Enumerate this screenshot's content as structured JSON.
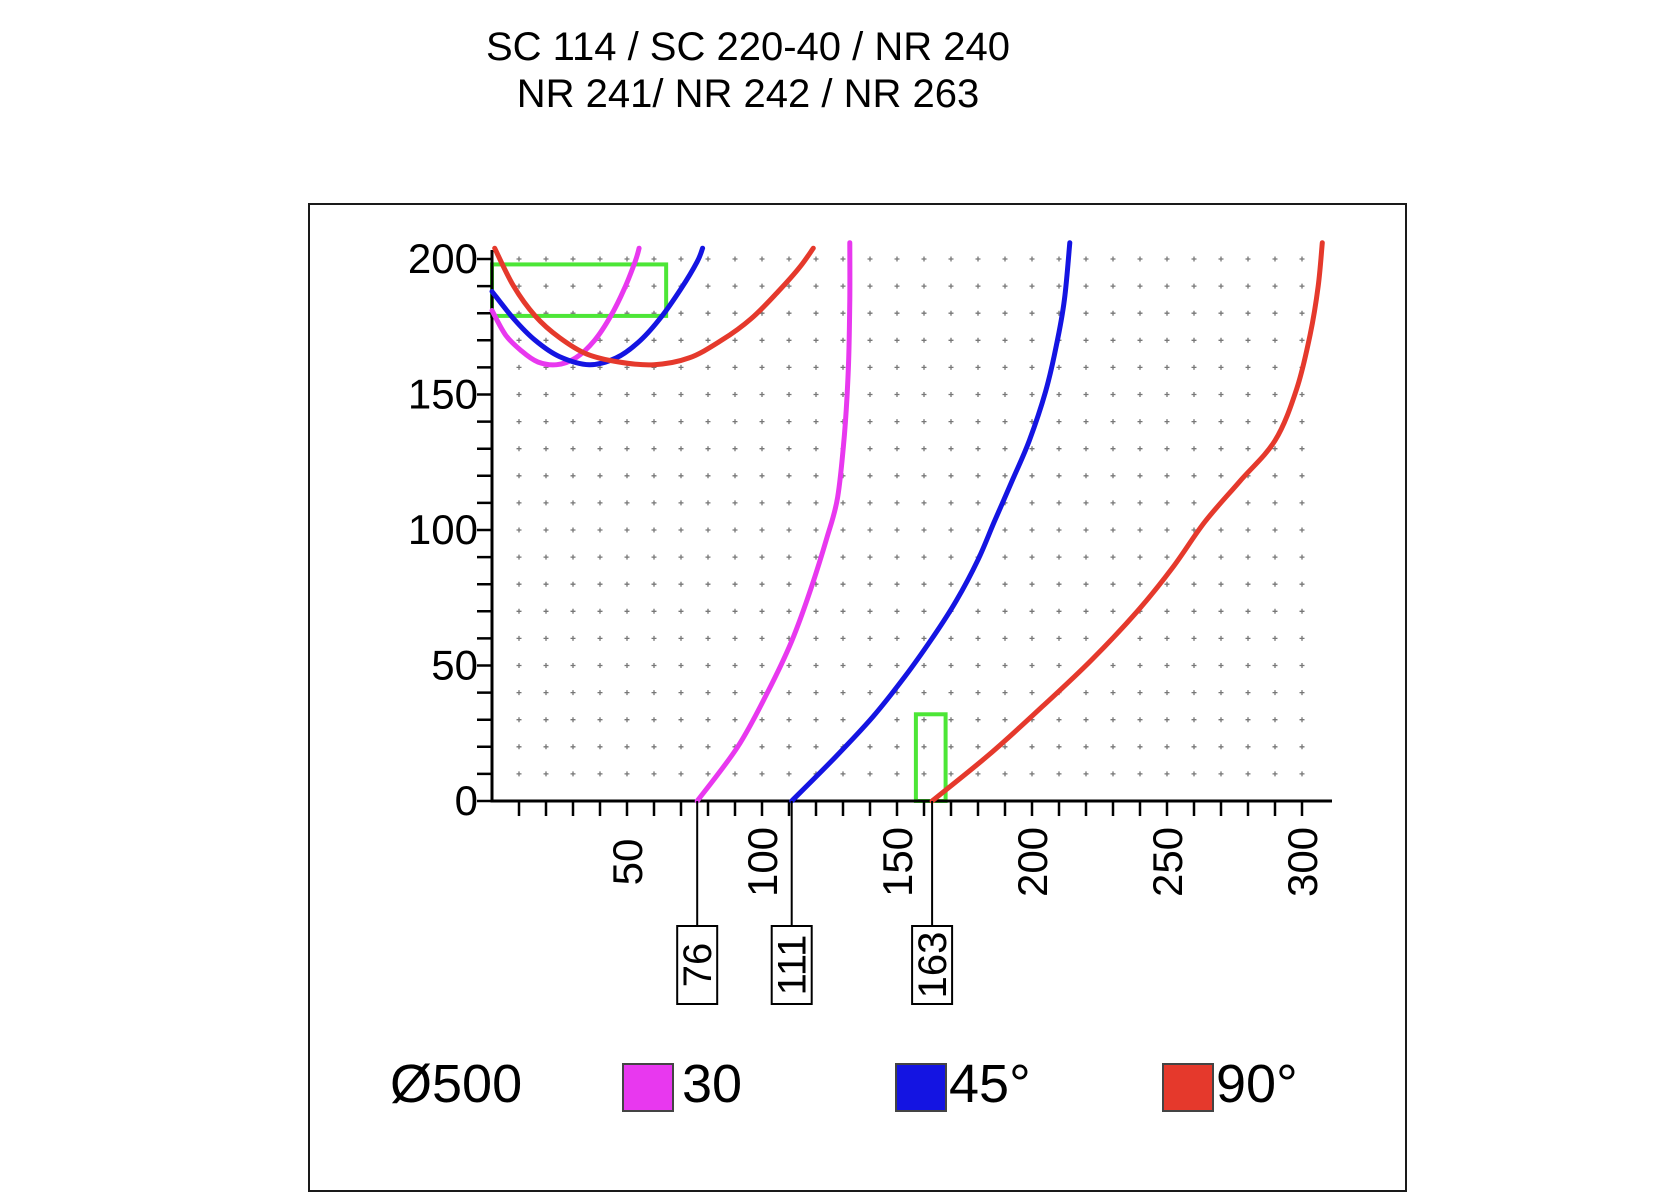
{
  "title": {
    "line1": "SC 114 / SC 220-40 / NR 240",
    "line2": "NR 241/ NR 242 / NR 263"
  },
  "legend": {
    "diameter_label": "Ø500",
    "items": [
      {
        "label": "30",
        "color": "#e838ef"
      },
      {
        "label": "45°",
        "color": "#1414e2"
      },
      {
        "label": "90°",
        "color": "#e5392c"
      }
    ]
  },
  "chart_data": {
    "type": "line",
    "title": "SC 114 / SC 220-40 / NR 240  NR 241/ NR 242 / NR 263",
    "xlabel": "",
    "ylabel": "",
    "xlim": [
      0,
      310
    ],
    "ylim": [
      0,
      206
    ],
    "x_tick_values": [
      50,
      100,
      150,
      200,
      250,
      300
    ],
    "x_tick_labels": [
      "50",
      "100",
      "150",
      "200",
      "250",
      "300"
    ],
    "y_tick_values": [
      0,
      50,
      100,
      150,
      200
    ],
    "y_tick_labels": [
      "0",
      "50",
      "100",
      "150",
      "200"
    ],
    "minor_tick_step": 10,
    "grid": {
      "style": "plus-marks",
      "x_step": 10,
      "y_step": 10,
      "x_range": [
        10,
        300
      ],
      "y_range": [
        10,
        200
      ],
      "color": "#777777"
    },
    "axis_color": "#000000",
    "highlight_color": "#4ce636",
    "highlight_rects": [
      {
        "x0": 0,
        "y0": 179,
        "x1": 64.5,
        "y1": 198
      },
      {
        "x0": 157,
        "y0": 0,
        "x1": 168,
        "y1": 32
      }
    ],
    "callouts": [
      {
        "label": "76",
        "x": 76
      },
      {
        "label": "111",
        "x": 111
      },
      {
        "label": "163",
        "x": 163
      }
    ],
    "series": [
      {
        "name": "30",
        "color": "#e838ef",
        "x_intercept": 76,
        "points_main": [
          [
            76,
            0
          ],
          [
            91,
            20
          ],
          [
            102,
            40
          ],
          [
            111,
            59
          ],
          [
            118,
            78
          ],
          [
            124,
            97
          ],
          [
            128,
            112
          ],
          [
            130.5,
            135
          ],
          [
            132,
            160
          ],
          [
            132.5,
            185
          ],
          [
            132.5,
            206
          ]
        ],
        "points_upper": [
          [
            0,
            181
          ],
          [
            5,
            172
          ],
          [
            11,
            166
          ],
          [
            17,
            162
          ],
          [
            24,
            161
          ],
          [
            31,
            163.5
          ],
          [
            38,
            170
          ],
          [
            44,
            179
          ],
          [
            49,
            189
          ],
          [
            53,
            199
          ],
          [
            54.5,
            204
          ]
        ]
      },
      {
        "name": "45°",
        "color": "#1414e2",
        "x_intercept": 111,
        "points_main": [
          [
            111,
            0
          ],
          [
            127,
            16
          ],
          [
            141,
            31
          ],
          [
            153,
            46
          ],
          [
            163,
            60
          ],
          [
            172,
            74
          ],
          [
            180,
            89
          ],
          [
            186,
            103
          ],
          [
            193,
            119
          ],
          [
            199,
            133
          ],
          [
            205,
            151
          ],
          [
            209,
            168
          ],
          [
            212,
            185
          ],
          [
            214,
            206
          ]
        ],
        "points_upper": [
          [
            0,
            188
          ],
          [
            8,
            178
          ],
          [
            16,
            170
          ],
          [
            25,
            164
          ],
          [
            36,
            161
          ],
          [
            46,
            163.5
          ],
          [
            55,
            170
          ],
          [
            63,
            179
          ],
          [
            70,
            189
          ],
          [
            76,
            199
          ],
          [
            78,
            204
          ]
        ]
      },
      {
        "name": "90°",
        "color": "#e5392c",
        "x_intercept": 163,
        "points_main": [
          [
            163,
            0
          ],
          [
            184,
            17
          ],
          [
            204,
            35
          ],
          [
            222,
            52
          ],
          [
            239,
            70
          ],
          [
            252,
            86
          ],
          [
            264,
            103
          ],
          [
            277,
            118
          ],
          [
            290,
            133
          ],
          [
            298,
            152
          ],
          [
            303,
            172
          ],
          [
            306,
            190
          ],
          [
            307.5,
            206
          ]
        ],
        "points_upper": [
          [
            1,
            204
          ],
          [
            8,
            190
          ],
          [
            16,
            179
          ],
          [
            25,
            171
          ],
          [
            35,
            165
          ],
          [
            47,
            162
          ],
          [
            60,
            161
          ],
          [
            73,
            163.5
          ],
          [
            85,
            170
          ],
          [
            96,
            178
          ],
          [
            106,
            188
          ],
          [
            114,
            197
          ],
          [
            119,
            204
          ]
        ]
      }
    ]
  }
}
